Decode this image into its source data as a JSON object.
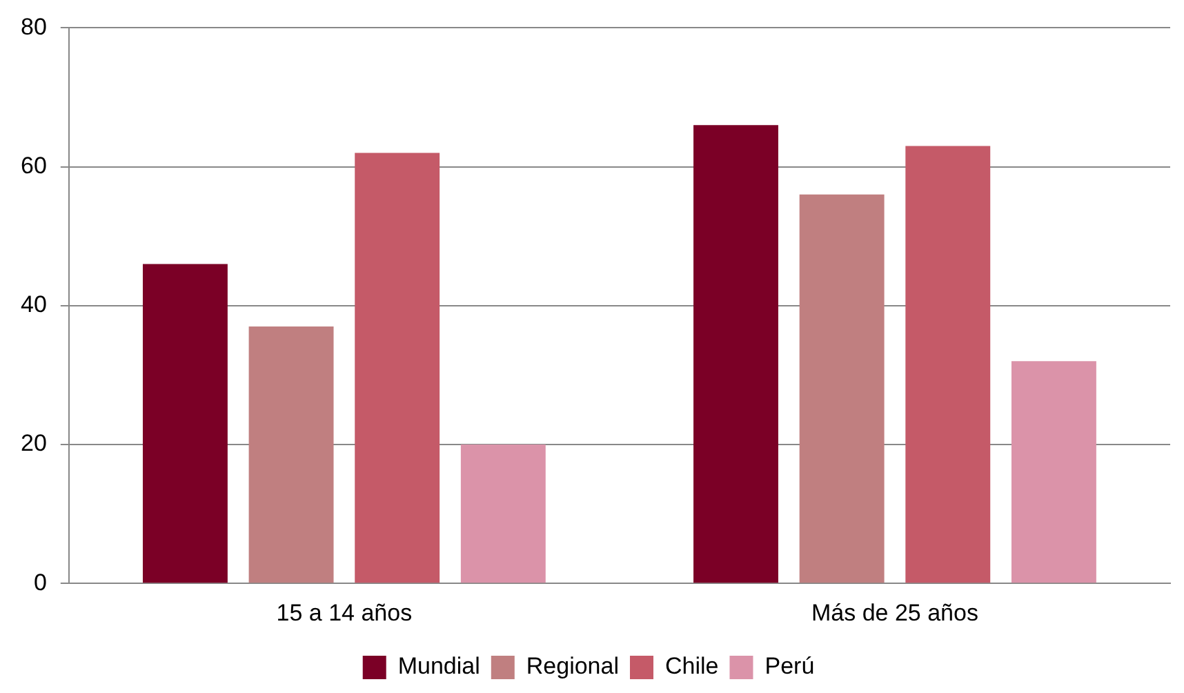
{
  "chart_data": {
    "type": "bar",
    "categories": [
      "15 a 14 años",
      "Más de 25 años"
    ],
    "series": [
      {
        "name": "Mundial",
        "color": "#7b0026",
        "values": [
          46,
          66
        ]
      },
      {
        "name": "Regional",
        "color": "#c07f80",
        "values": [
          37,
          56
        ]
      },
      {
        "name": "Chile",
        "color": "#c55a68",
        "values": [
          62,
          63
        ]
      },
      {
        "name": "Perú",
        "color": "#db93a9",
        "values": [
          20,
          32
        ]
      }
    ],
    "ylim": [
      0,
      80
    ],
    "yticks": [
      0,
      20,
      40,
      60,
      80
    ],
    "grid": "y",
    "legend": "bottom"
  }
}
